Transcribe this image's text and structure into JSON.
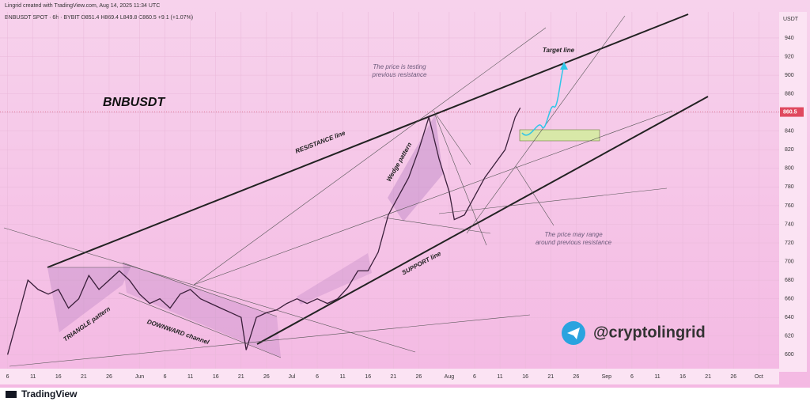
{
  "header": {
    "credit": "Lingrid created with TradingView.com, Aug 14, 2025 11:34 UTC",
    "symbol_line": "BNBUSDT SPOT · 6h · BYBIT  O851.4  H869.4  L849.8  C860.5  +9.1 (+1.07%)"
  },
  "chart_data": {
    "type": "line",
    "title": "BNBUSDT",
    "y_axis_label": "USDT",
    "color": "#3a1f3a",
    "x": [
      0,
      2,
      4,
      6,
      8,
      10,
      12,
      14,
      16,
      18,
      20,
      22,
      24,
      26,
      28,
      30,
      32,
      34,
      36,
      38,
      40,
      42,
      44,
      46,
      47,
      49,
      51,
      53,
      55,
      57,
      59,
      61,
      63,
      65,
      67,
      69,
      71,
      73,
      75,
      77,
      79,
      81,
      83,
      85,
      87,
      88,
      90,
      92,
      94,
      96,
      98,
      100,
      101
    ],
    "values": [
      600,
      640,
      680,
      670,
      665,
      670,
      650,
      660,
      685,
      670,
      680,
      690,
      680,
      665,
      655,
      660,
      650,
      665,
      670,
      660,
      655,
      650,
      645,
      640,
      605,
      640,
      645,
      648,
      655,
      660,
      655,
      660,
      655,
      660,
      672,
      690,
      690,
      710,
      750,
      770,
      790,
      820,
      855,
      810,
      775,
      745,
      750,
      770,
      790,
      805,
      820,
      855,
      865
    ],
    "last_price": 860.5,
    "xlim": [
      -1.5,
      152
    ],
    "ylim": [
      585,
      968
    ],
    "xticks": [
      {
        "value": 0,
        "label": "6"
      },
      {
        "value": 5,
        "label": "11"
      },
      {
        "value": 10,
        "label": "16"
      },
      {
        "value": 15,
        "label": "21"
      },
      {
        "value": 20,
        "label": "26"
      },
      {
        "value": 26,
        "label": "Jun"
      },
      {
        "value": 31,
        "label": "6"
      },
      {
        "value": 36,
        "label": "11"
      },
      {
        "value": 41,
        "label": "16"
      },
      {
        "value": 46,
        "label": "21"
      },
      {
        "value": 51,
        "label": "26"
      },
      {
        "value": 56,
        "label": "Jul"
      },
      {
        "value": 61,
        "label": "6"
      },
      {
        "value": 66,
        "label": "11"
      },
      {
        "value": 71,
        "label": "16"
      },
      {
        "value": 76,
        "label": "21"
      },
      {
        "value": 81,
        "label": "26"
      },
      {
        "value": 87,
        "label": "Aug"
      },
      {
        "value": 92,
        "label": "6"
      },
      {
        "value": 97,
        "label": "11"
      },
      {
        "value": 102,
        "label": "16"
      },
      {
        "value": 107,
        "label": "21"
      },
      {
        "value": 112,
        "label": "26"
      },
      {
        "value": 118,
        "label": "Sep"
      },
      {
        "value": 123,
        "label": "6"
      },
      {
        "value": 128,
        "label": "11"
      },
      {
        "value": 133,
        "label": "16"
      },
      {
        "value": 138,
        "label": "21"
      },
      {
        "value": 143,
        "label": "26"
      },
      {
        "value": 148,
        "label": "Oct"
      }
    ],
    "yticks": [
      600,
      620,
      640,
      660,
      680,
      700,
      720,
      740,
      760,
      780,
      800,
      820,
      840,
      860,
      880,
      900,
      920,
      940
    ]
  },
  "annotations": {
    "testing": "The price is testing",
    "testing2": "previous resistance",
    "target": "Target line",
    "resistance": "RESISTANCE line",
    "wedge": "Wedge pattern",
    "support": "SUPPORT line",
    "range": "The price may range",
    "range2": "around previous resistance",
    "triangle": "TRIANGLE pattern",
    "downward": "DOWNWARD channel",
    "handle": "@cryptolingrid"
  },
  "footer": {
    "brand": "TradingView"
  }
}
